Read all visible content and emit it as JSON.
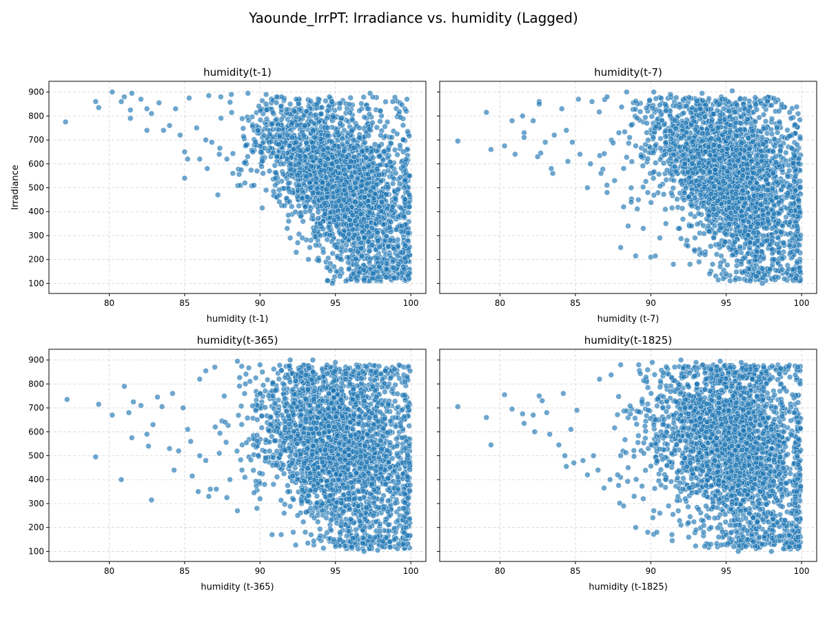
{
  "figure": {
    "title": "Yaounde_IrrPT: Irradiance vs. humidity (Lagged)"
  },
  "style": {
    "point_color": "#1f77b4",
    "point_edge": "#ffffff",
    "grid_color": "#b0b0b0"
  },
  "chart_data": [
    {
      "type": "scatter",
      "title": "humidity(t-1)",
      "xlabel": "humidity (t-1)",
      "ylabel": "Irradiance",
      "xlim": [
        76,
        101
      ],
      "ylim": [
        58,
        945
      ],
      "xticks": [
        80,
        85,
        90,
        95,
        100
      ],
      "yticks": [
        100,
        200,
        300,
        400,
        500,
        600,
        700,
        800,
        900
      ],
      "grid": true,
      "points": [
        [
          77.1,
          775
        ],
        [
          79.1,
          860
        ],
        [
          79.3,
          835
        ],
        [
          80.2,
          900
        ],
        [
          80.8,
          860
        ],
        [
          81.0,
          880
        ],
        [
          81.5,
          895
        ],
        [
          81.4,
          825
        ],
        [
          81.4,
          790
        ],
        [
          82.1,
          870
        ],
        [
          82.5,
          830
        ],
        [
          82.5,
          740
        ],
        [
          82.8,
          810
        ],
        [
          83.3,
          855
        ],
        [
          83.6,
          740
        ],
        [
          84.0,
          760
        ],
        [
          84.4,
          830
        ],
        [
          84.7,
          720
        ],
        [
          85.0,
          540
        ],
        [
          85.0,
          650
        ],
        [
          85.2,
          620
        ],
        [
          85.8,
          750
        ],
        [
          86.0,
          620
        ],
        [
          86.4,
          700
        ],
        [
          86.5,
          580
        ],
        [
          86.8,
          690
        ],
        [
          87.2,
          470
        ],
        [
          87.3,
          640
        ],
        [
          87.8,
          620
        ],
        [
          88.2,
          560
        ],
        [
          88.7,
          510
        ],
        [
          89.0,
          520
        ],
        [
          89.6,
          510
        ],
        [
          89.8,
          570
        ],
        [
          90.2,
          560
        ],
        [
          90.4,
          490
        ],
        [
          90.9,
          485
        ],
        [
          91.1,
          460
        ],
        [
          91.3,
          470
        ],
        [
          91.8,
          330
        ],
        [
          91.9,
          360
        ],
        [
          92.0,
          290
        ],
        [
          92.4,
          230
        ],
        [
          92.5,
          270
        ],
        [
          92.7,
          380
        ],
        [
          92.8,
          290
        ],
        [
          93.0,
          420
        ],
        [
          93.3,
          250
        ],
        [
          93.6,
          320
        ],
        [
          93.7,
          260
        ],
        [
          93.9,
          195
        ],
        [
          94.0,
          300
        ],
        [
          94.2,
          230
        ],
        [
          94.8,
          100
        ],
        [
          94.9,
          170
        ],
        [
          95.1,
          250
        ],
        [
          95.3,
          130
        ],
        [
          95.7,
          110
        ],
        [
          96.2,
          140
        ],
        [
          96.4,
          180
        ],
        [
          96.9,
          115
        ],
        [
          97.5,
          140
        ],
        [
          97.9,
          170
        ],
        [
          98.4,
          160
        ],
        [
          98.8,
          190
        ],
        [
          99.3,
          230
        ],
        [
          99.6,
          205
        ],
        [
          99.8,
          280
        ],
        [
          99.4,
          340
        ],
        [
          99.9,
          420
        ],
        [
          99.6,
          530
        ],
        [
          99.5,
          590
        ],
        [
          99.5,
          650
        ],
        [
          99.7,
          820
        ],
        [
          97.3,
          895
        ],
        [
          94.6,
          880
        ],
        [
          92.4,
          870
        ],
        [
          91.1,
          880
        ],
        [
          90.4,
          890
        ],
        [
          89.2,
          895
        ],
        [
          88.1,
          890
        ],
        [
          87.4,
          880
        ],
        [
          86.6,
          885
        ],
        [
          85.3,
          875
        ],
        [
          98.8,
          860
        ],
        [
          99.9,
          470
        ]
      ]
    },
    {
      "type": "scatter",
      "title": "humidity(t-7)",
      "xlabel": "humidity (t-7)",
      "ylabel": "",
      "xlim": [
        76,
        101
      ],
      "ylim": [
        58,
        945
      ],
      "xticks": [
        80,
        85,
        90,
        95,
        100
      ],
      "yticks": [
        100,
        200,
        300,
        400,
        500,
        600,
        700,
        800,
        900
      ],
      "grid": true,
      "points": [
        [
          77.2,
          695
        ],
        [
          79.1,
          815
        ],
        [
          79.4,
          660
        ],
        [
          80.3,
          675
        ],
        [
          80.8,
          780
        ],
        [
          81.0,
          640
        ],
        [
          81.5,
          800
        ],
        [
          81.6,
          730
        ],
        [
          81.6,
          710
        ],
        [
          82.2,
          780
        ],
        [
          82.5,
          630
        ],
        [
          82.6,
          860
        ],
        [
          82.6,
          850
        ],
        [
          82.7,
          645
        ],
        [
          83.0,
          690
        ],
        [
          83.4,
          580
        ],
        [
          83.5,
          560
        ],
        [
          83.6,
          720
        ],
        [
          84.1,
          830
        ],
        [
          84.4,
          740
        ],
        [
          84.5,
          610
        ],
        [
          84.8,
          690
        ],
        [
          85.2,
          870
        ],
        [
          85.3,
          640
        ],
        [
          85.8,
          500
        ],
        [
          86.0,
          600
        ],
        [
          86.7,
          560
        ],
        [
          87.1,
          480
        ],
        [
          87.6,
          530
        ],
        [
          88.0,
          250
        ],
        [
          88.2,
          420
        ],
        [
          88.5,
          340
        ],
        [
          88.7,
          440
        ],
        [
          89.0,
          215
        ],
        [
          89.5,
          330
        ],
        [
          89.8,
          480
        ],
        [
          90.0,
          210
        ],
        [
          90.3,
          215
        ],
        [
          90.6,
          290
        ],
        [
          91.0,
          350
        ],
        [
          91.5,
          180
        ],
        [
          91.9,
          330
        ],
        [
          92.4,
          280
        ],
        [
          92.6,
          180
        ],
        [
          92.9,
          240
        ],
        [
          93.2,
          190
        ],
        [
          93.6,
          220
        ],
        [
          93.9,
          140
        ],
        [
          94.1,
          180
        ],
        [
          94.6,
          170
        ],
        [
          94.8,
          120
        ],
        [
          95.0,
          140
        ],
        [
          95.6,
          115
        ],
        [
          96.0,
          180
        ],
        [
          96.5,
          160
        ],
        [
          96.6,
          110
        ],
        [
          97.0,
          130
        ],
        [
          97.4,
          100
        ],
        [
          97.9,
          160
        ],
        [
          98.2,
          200
        ],
        [
          98.5,
          230
        ],
        [
          98.8,
          270
        ],
        [
          99.2,
          260
        ],
        [
          99.7,
          340
        ],
        [
          99.8,
          450
        ],
        [
          99.9,
          500
        ],
        [
          99.8,
          600
        ],
        [
          99.7,
          680
        ],
        [
          99.3,
          790
        ],
        [
          98.5,
          820
        ],
        [
          95.4,
          905
        ],
        [
          93.4,
          895
        ],
        [
          91.3,
          890
        ],
        [
          90.2,
          900
        ],
        [
          88.4,
          900
        ],
        [
          87.1,
          880
        ],
        [
          86.1,
          860
        ]
      ]
    },
    {
      "type": "scatter",
      "title": "humidity(t-365)",
      "xlabel": "humidity (t-365)",
      "ylabel": "",
      "xlim": [
        76,
        101
      ],
      "ylim": [
        58,
        945
      ],
      "xticks": [
        80,
        85,
        90,
        95,
        100
      ],
      "yticks": [
        100,
        200,
        300,
        400,
        500,
        600,
        700,
        800,
        900
      ],
      "grid": true,
      "points": [
        [
          77.2,
          735
        ],
        [
          79.1,
          495
        ],
        [
          79.3,
          715
        ],
        [
          80.2,
          670
        ],
        [
          80.8,
          400
        ],
        [
          81.0,
          790
        ],
        [
          81.3,
          680
        ],
        [
          81.5,
          575
        ],
        [
          81.6,
          725
        ],
        [
          82.1,
          710
        ],
        [
          82.5,
          590
        ],
        [
          82.6,
          540
        ],
        [
          82.8,
          315
        ],
        [
          82.9,
          630
        ],
        [
          83.2,
          745
        ],
        [
          83.5,
          705
        ],
        [
          84.0,
          530
        ],
        [
          84.2,
          760
        ],
        [
          84.3,
          440
        ],
        [
          84.6,
          520
        ],
        [
          84.9,
          700
        ],
        [
          85.2,
          610
        ],
        [
          85.4,
          560
        ],
        [
          85.5,
          415
        ],
        [
          85.9,
          350
        ],
        [
          86.0,
          500
        ],
        [
          86.4,
          480
        ],
        [
          86.6,
          330
        ],
        [
          86.7,
          360
        ],
        [
          87.3,
          510
        ],
        [
          87.8,
          325
        ],
        [
          88.0,
          400
        ],
        [
          88.5,
          270
        ],
        [
          88.8,
          440
        ],
        [
          89.0,
          410
        ],
        [
          89.6,
          345
        ],
        [
          90.0,
          320
        ],
        [
          90.3,
          380
        ],
        [
          90.8,
          170
        ],
        [
          91.4,
          170
        ],
        [
          91.6,
          260
        ],
        [
          92.2,
          180
        ],
        [
          92.5,
          250
        ],
        [
          93.0,
          180
        ],
        [
          93.6,
          240
        ],
        [
          94.0,
          165
        ],
        [
          94.4,
          240
        ],
        [
          94.9,
          150
        ],
        [
          95.3,
          180
        ],
        [
          96.0,
          140
        ],
        [
          96.5,
          110
        ],
        [
          96.9,
          100
        ],
        [
          97.3,
          160
        ],
        [
          97.8,
          105
        ],
        [
          98.1,
          120
        ],
        [
          98.6,
          140
        ],
        [
          99.0,
          180
        ],
        [
          99.5,
          280
        ],
        [
          99.6,
          340
        ],
        [
          99.8,
          410
        ],
        [
          99.9,
          470
        ],
        [
          99.7,
          560
        ],
        [
          99.4,
          690
        ],
        [
          98.8,
          780
        ],
        [
          96.5,
          870
        ],
        [
          95.0,
          890
        ],
        [
          93.5,
          900
        ],
        [
          92.0,
          900
        ],
        [
          90.0,
          880
        ],
        [
          88.5,
          895
        ],
        [
          87.0,
          870
        ],
        [
          86.0,
          820
        ],
        [
          86.4,
          855
        ]
      ]
    },
    {
      "type": "scatter",
      "title": "humidity(t-1825)",
      "xlabel": "humidity (t-1825)",
      "ylabel": "",
      "xlim": [
        76,
        101
      ],
      "ylim": [
        58,
        945
      ],
      "xticks": [
        80,
        85,
        90,
        95,
        100
      ],
      "yticks": [
        100,
        200,
        300,
        400,
        500,
        600,
        700,
        800,
        900
      ],
      "grid": true,
      "points": [
        [
          77.2,
          705
        ],
        [
          79.1,
          660
        ],
        [
          79.4,
          545
        ],
        [
          80.3,
          755
        ],
        [
          80.8,
          695
        ],
        [
          81.5,
          675
        ],
        [
          81.6,
          635
        ],
        [
          82.2,
          670
        ],
        [
          82.3,
          600
        ],
        [
          82.6,
          750
        ],
        [
          82.8,
          730
        ],
        [
          83.1,
          680
        ],
        [
          83.3,
          590
        ],
        [
          83.9,
          545
        ],
        [
          84.2,
          760
        ],
        [
          84.3,
          500
        ],
        [
          84.4,
          455
        ],
        [
          84.7,
          610
        ],
        [
          84.9,
          470
        ],
        [
          85.1,
          690
        ],
        [
          85.5,
          480
        ],
        [
          85.8,
          420
        ],
        [
          86.2,
          500
        ],
        [
          86.5,
          440
        ],
        [
          86.6,
          820
        ],
        [
          86.9,
          365
        ],
        [
          87.3,
          400
        ],
        [
          87.8,
          420
        ],
        [
          88.0,
          500
        ],
        [
          88.2,
          290
        ],
        [
          88.5,
          450
        ],
        [
          89.0,
          200
        ],
        [
          89.5,
          320
        ],
        [
          89.8,
          180
        ],
        [
          90.2,
          270
        ],
        [
          90.4,
          180
        ],
        [
          90.6,
          260
        ],
        [
          91.0,
          400
        ],
        [
          91.4,
          170
        ],
        [
          91.8,
          330
        ],
        [
          92.0,
          210
        ],
        [
          92.5,
          220
        ],
        [
          93.0,
          190
        ],
        [
          93.5,
          180
        ],
        [
          94.0,
          200
        ],
        [
          94.5,
          160
        ],
        [
          95.0,
          170
        ],
        [
          95.5,
          120
        ],
        [
          95.8,
          100
        ],
        [
          96.3,
          120
        ],
        [
          96.8,
          140
        ],
        [
          97.2,
          160
        ],
        [
          97.6,
          180
        ],
        [
          98.0,
          100
        ],
        [
          98.4,
          220
        ],
        [
          98.9,
          230
        ],
        [
          99.3,
          260
        ],
        [
          99.6,
          320
        ],
        [
          99.9,
          420
        ],
        [
          99.8,
          570
        ],
        [
          99.5,
          680
        ],
        [
          99.0,
          770
        ],
        [
          97.5,
          870
        ],
        [
          96.0,
          890
        ],
        [
          94.6,
          895
        ],
        [
          93.0,
          890
        ],
        [
          92.0,
          900
        ],
        [
          90.1,
          890
        ],
        [
          89.2,
          880
        ],
        [
          88.0,
          880
        ]
      ]
    }
  ]
}
